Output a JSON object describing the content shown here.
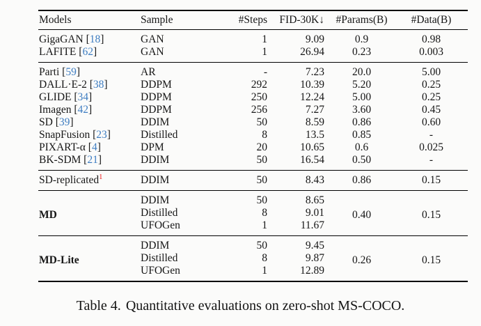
{
  "colors": {
    "citation_blue": "#3e7dc1",
    "footnote_red": "#ee1111"
  },
  "table": {
    "columns": [
      "Models",
      "Sample",
      "#Steps",
      "FID-30K↓",
      "#Params(B)",
      "#Data(B)"
    ],
    "column_keys": [
      "models",
      "sample",
      "steps",
      "fid",
      "params",
      "data"
    ],
    "groups": [
      {
        "rows": [
          {
            "model": "GigaGAN",
            "cite": "18",
            "sample": "GAN",
            "steps": "1",
            "fid": "9.09",
            "params": "0.9",
            "data": "0.98"
          },
          {
            "model": "LAFITE",
            "cite": "62",
            "sample": "GAN",
            "steps": "1",
            "fid": "26.94",
            "params": "0.23",
            "data": "0.003"
          }
        ]
      },
      {
        "rows": [
          {
            "model": "Parti",
            "cite": "59",
            "sample": "AR",
            "steps": "-",
            "fid": "7.23",
            "params": "20.0",
            "data": "5.00"
          },
          {
            "model": "DALL·E-2",
            "cite": "38",
            "sample": "DDPM",
            "steps": "292",
            "fid": "10.39",
            "params": "5.20",
            "data": "0.25"
          },
          {
            "model": "GLIDE",
            "cite": "34",
            "sample": "DDPM",
            "steps": "250",
            "fid": "12.24",
            "params": "5.00",
            "data": "0.25"
          },
          {
            "model": "Imagen",
            "cite": "42",
            "sample": "DDPM",
            "steps": "256",
            "fid": "7.27",
            "params": "3.60",
            "data": "0.45"
          },
          {
            "model": "SD",
            "cite": "39",
            "sample": "DDIM",
            "steps": "50",
            "fid": "8.59",
            "params": "0.86",
            "data": "0.60"
          },
          {
            "model": "SnapFusion",
            "cite": "23",
            "sample": "Distilled",
            "steps": "8",
            "fid": "13.5",
            "params": "0.85",
            "data": "-"
          },
          {
            "model": "PIXART-α",
            "cite": "4",
            "sample": "DPM",
            "steps": "20",
            "fid": "10.65",
            "params": "0.6",
            "data": "0.025"
          },
          {
            "model": "BK-SDM",
            "cite": "21",
            "sample": "DDIM",
            "steps": "50",
            "fid": "16.54",
            "params": "0.50",
            "data": "-"
          }
        ]
      },
      {
        "rows": [
          {
            "model": "SD-replicated",
            "sup": "1",
            "sample": "DDIM",
            "steps": "50",
            "fid": "8.43",
            "params": "0.86",
            "data": "0.15"
          }
        ]
      },
      {
        "model": "MD",
        "bold": true,
        "params": "0.40",
        "data": "0.15",
        "rows": [
          {
            "sample": "DDIM",
            "steps": "50",
            "fid": "8.65"
          },
          {
            "sample": "Distilled",
            "steps": "8",
            "fid": "9.01"
          },
          {
            "sample": "UFOGen",
            "steps": "1",
            "fid": "11.67"
          }
        ]
      },
      {
        "model": "MD-Lite",
        "bold": true,
        "params": "0.26",
        "data": "0.15",
        "rows": [
          {
            "sample": "DDIM",
            "steps": "50",
            "fid": "9.45"
          },
          {
            "sample": "Distilled",
            "steps": "8",
            "fid": "9.87"
          },
          {
            "sample": "UFOGen",
            "steps": "1",
            "fid": "12.89"
          }
        ]
      }
    ]
  },
  "caption": {
    "label": "Table 4.",
    "text": "Quantitative evaluations on zero-shot MS-COCO."
  }
}
